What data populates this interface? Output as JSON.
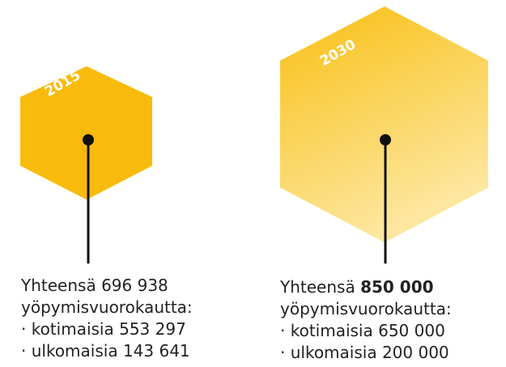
{
  "items": [
    {
      "year": "2015",
      "total_label": "Yhteensä",
      "total_value": "696 938",
      "unit": "yöpymisvuorokautta:",
      "domestic": "· kotimaisia 553 297",
      "foreign": "· ulkomaisia 143 641"
    },
    {
      "year": "2030",
      "total_label": "Yhteensä",
      "total_value": "850 000",
      "unit": "yöpymisvuorokautta:",
      "domestic": "· kotimaisia 650 000",
      "foreign": "· ulkomaisia 200 000"
    }
  ]
}
